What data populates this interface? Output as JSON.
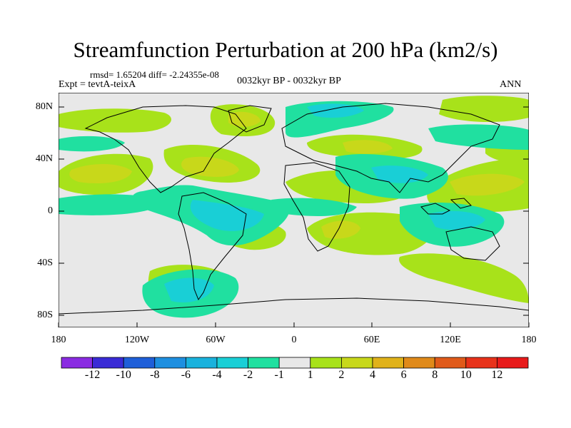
{
  "figure": {
    "title": "Streamfunction Perturbation at 200 hPa (km2/s)",
    "stats": "rmsd= 1.65204 diff= -2.24355e-08",
    "experiment": "Expt = tevtA-teixA",
    "period": "0032kyr BP - 0032kyr BP",
    "season": "ANN"
  },
  "map": {
    "lat_labels": [
      "80N",
      "40N",
      "0",
      "40S",
      "80S"
    ],
    "lon_labels": [
      "180",
      "120W",
      "60W",
      "0",
      "60E",
      "120E",
      "180"
    ]
  },
  "colorbar": {
    "labels": [
      "-12",
      "-10",
      "-8",
      "-6",
      "-4",
      "-2",
      "-1",
      "1",
      "2",
      "4",
      "6",
      "8",
      "10",
      "12"
    ],
    "colors": [
      "#8a2be2",
      "#3a2bd6",
      "#1f5fd9",
      "#1e8fe0",
      "#19b2dd",
      "#19cfd6",
      "#20e0a0",
      "#e8e8e8",
      "#a8e21a",
      "#c8d81a",
      "#e0b21a",
      "#e08a1a",
      "#e05a1a",
      "#e8321a",
      "#e81a1a"
    ]
  }
}
